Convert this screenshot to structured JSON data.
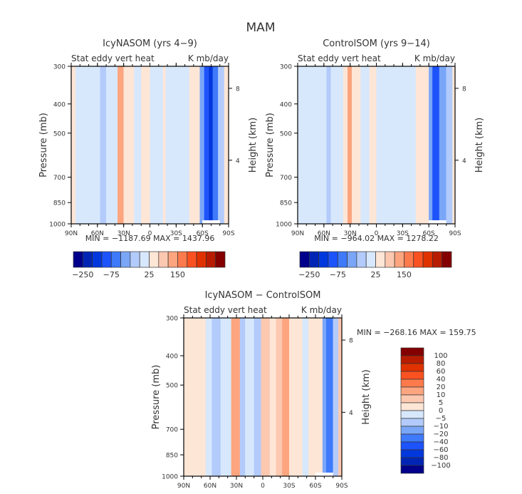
{
  "page_title": "MAM",
  "chart_data": [
    {
      "type": "heatmap",
      "id": "icy",
      "title": "IcyNASOM (yrs 4−9)",
      "subtitle_left": "Stat eddy vert heat",
      "subtitle_right": "K mb/day",
      "ylabel": "Pressure (mb)",
      "ylabel_right": "Height (km)",
      "x_ticks": [
        "90N",
        "60N",
        "30N",
        "0",
        "30S",
        "60S",
        "90S"
      ],
      "x_range": [
        90,
        -90
      ],
      "y_ticks": [
        "300",
        "400",
        "500",
        "700",
        "850",
        "1000"
      ],
      "y_tick_values": [
        300,
        400,
        500,
        700,
        850,
        1000
      ],
      "y_range": [
        300,
        1000
      ],
      "y_right_ticks": [
        "8",
        "4"
      ],
      "y_right_tick_pressures": [
        355,
        615
      ],
      "stats": "MIN = −1187.69   MAX = 1437.96",
      "min": -1187.69,
      "max": 1437.96,
      "colorbar_labels": [
        "−250",
        "−75",
        "25",
        "150"
      ],
      "bands": [
        {
          "lat": [
            90,
            85
          ],
          "level": 8
        },
        {
          "lat": [
            85,
            57
          ],
          "level": 7
        },
        {
          "lat": [
            57,
            50
          ],
          "level": 6
        },
        {
          "lat": [
            50,
            37
          ],
          "level": 7
        },
        {
          "lat": [
            37,
            30
          ],
          "level": 10
        },
        {
          "lat": [
            30,
            18
          ],
          "level": 8
        },
        {
          "lat": [
            18,
            10
          ],
          "level": 7
        },
        {
          "lat": [
            10,
            0
          ],
          "level": 8
        },
        {
          "lat": [
            0,
            -15
          ],
          "level": 7
        },
        {
          "lat": [
            -15,
            -18
          ],
          "level": 8
        },
        {
          "lat": [
            -18,
            -45
          ],
          "level": 7
        },
        {
          "lat": [
            -45,
            -57
          ],
          "level": 8
        },
        {
          "lat": [
            -57,
            -62
          ],
          "level": 5
        },
        {
          "lat": [
            -62,
            -67
          ],
          "level": 3
        },
        {
          "lat": [
            -67,
            -72
          ],
          "level": 2
        },
        {
          "lat": [
            -72,
            -78
          ],
          "level": 4
        },
        {
          "lat": [
            -78,
            -85
          ],
          "level": 6
        },
        {
          "lat": [
            -85,
            -90
          ],
          "level": 8
        }
      ]
    },
    {
      "type": "heatmap",
      "id": "control",
      "title": "ControlSOM (yrs 9−14)",
      "subtitle_left": "Stat eddy vert heat",
      "subtitle_right": "K mb/day",
      "ylabel": "Pressure (mb)",
      "ylabel_right": "Height (km)",
      "x_ticks": [
        "90N",
        "60N",
        "30N",
        "0",
        "30S",
        "60S",
        "90S"
      ],
      "x_range": [
        90,
        -90
      ],
      "y_ticks": [
        "300",
        "400",
        "500",
        "700",
        "850",
        "1000"
      ],
      "y_tick_values": [
        300,
        400,
        500,
        700,
        850,
        1000
      ],
      "y_range": [
        300,
        1000
      ],
      "y_right_ticks": [
        "8",
        "4"
      ],
      "y_right_tick_pressures": [
        355,
        615
      ],
      "stats": "MIN = −964.02   MAX = 1278.22",
      "min": -964.02,
      "max": 1278.22,
      "colorbar_labels": [
        "−250",
        "−75",
        "25",
        "150"
      ],
      "bands": [
        {
          "lat": [
            90,
            57
          ],
          "level": 7
        },
        {
          "lat": [
            57,
            52
          ],
          "level": 6
        },
        {
          "lat": [
            52,
            38
          ],
          "level": 7
        },
        {
          "lat": [
            38,
            33
          ],
          "level": 8
        },
        {
          "lat": [
            33,
            28
          ],
          "level": 10
        },
        {
          "lat": [
            28,
            18
          ],
          "level": 8
        },
        {
          "lat": [
            18,
            8
          ],
          "level": 7
        },
        {
          "lat": [
            8,
            0
          ],
          "level": 8
        },
        {
          "lat": [
            0,
            -45
          ],
          "level": 7
        },
        {
          "lat": [
            -45,
            -60
          ],
          "level": 8
        },
        {
          "lat": [
            -60,
            -64
          ],
          "level": 5
        },
        {
          "lat": [
            -64,
            -72
          ],
          "level": 3
        },
        {
          "lat": [
            -72,
            -80
          ],
          "level": 5
        },
        {
          "lat": [
            -80,
            -87
          ],
          "level": 6
        },
        {
          "lat": [
            -87,
            -90
          ],
          "level": 8
        }
      ]
    },
    {
      "type": "heatmap",
      "id": "diff",
      "title": "IcyNASOM − ControlSOM",
      "subtitle_left": "Stat eddy vert heat",
      "subtitle_right": "K mb/day",
      "ylabel": "Pressure (mb)",
      "ylabel_right": "Height (km)",
      "x_ticks": [
        "90N",
        "60N",
        "30N",
        "0",
        "30S",
        "60S",
        "90S"
      ],
      "x_range": [
        90,
        -90
      ],
      "y_ticks": [
        "300",
        "400",
        "500",
        "700",
        "850",
        "1000"
      ],
      "y_tick_values": [
        300,
        400,
        500,
        700,
        850,
        1000
      ],
      "y_range": [
        300,
        1000
      ],
      "y_right_ticks": [
        "8",
        "4"
      ],
      "y_right_tick_pressures": [
        355,
        615
      ],
      "stats": "MIN = −268.16   MAX = 159.75",
      "min": -268.16,
      "max": 159.75,
      "colorbar_labels": [
        "100",
        "80",
        "60",
        "40",
        "20",
        "10",
        "5",
        "0",
        "−5",
        "−10",
        "−20",
        "−40",
        "−60",
        "−80",
        "−100"
      ],
      "bands": [
        {
          "lat": [
            90,
            65
          ],
          "level": 8
        },
        {
          "lat": [
            65,
            58
          ],
          "level": 7
        },
        {
          "lat": [
            58,
            48
          ],
          "level": 6
        },
        {
          "lat": [
            48,
            36
          ],
          "level": 7
        },
        {
          "lat": [
            36,
            26
          ],
          "level": 10
        },
        {
          "lat": [
            26,
            20
          ],
          "level": 6
        },
        {
          "lat": [
            20,
            10
          ],
          "level": 7
        },
        {
          "lat": [
            10,
            2
          ],
          "level": 6
        },
        {
          "lat": [
            2,
            -8
          ],
          "level": 9
        },
        {
          "lat": [
            -8,
            -15
          ],
          "level": 8
        },
        {
          "lat": [
            -15,
            -22
          ],
          "level": 9
        },
        {
          "lat": [
            -22,
            -30
          ],
          "level": 10
        },
        {
          "lat": [
            -30,
            -45
          ],
          "level": 8
        },
        {
          "lat": [
            -45,
            -52
          ],
          "level": 7
        },
        {
          "lat": [
            -52,
            -68
          ],
          "level": 8
        },
        {
          "lat": [
            -68,
            -72
          ],
          "level": 5
        },
        {
          "lat": [
            -72,
            -80
          ],
          "level": 4
        },
        {
          "lat": [
            -80,
            -86
          ],
          "level": 6
        },
        {
          "lat": [
            -86,
            -90
          ],
          "level": 9
        }
      ]
    }
  ],
  "palette": [
    "#00008b",
    "#0025b5",
    "#0038dd",
    "#1d53fb",
    "#3e7af9",
    "#7aa6f8",
    "#b3cbfb",
    "#d7e8fd",
    "#fee6d6",
    "#fdc8b0",
    "#fca57f",
    "#fc7a4c",
    "#fa5121",
    "#e03200",
    "#b81c00",
    "#840000"
  ]
}
